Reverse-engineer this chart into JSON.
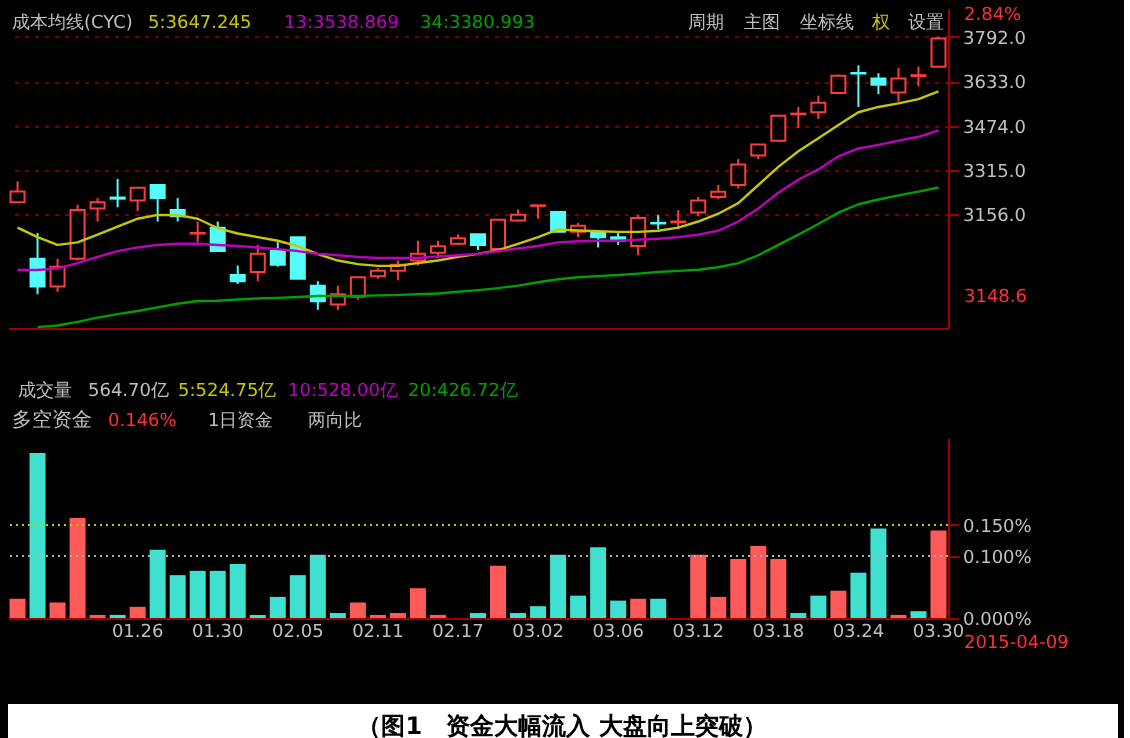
{
  "chart_data": [
    {
      "type": "candlestick",
      "title": "成本均线(CYC)",
      "legend": "top left",
      "tick_labels": "y",
      "grid": "y",
      "categories": [
        null,
        null,
        null,
        null,
        null,
        null,
        "01.26",
        null,
        null,
        null,
        "01.30",
        null,
        null,
        null,
        "02.05",
        null,
        null,
        null,
        "02.11",
        null,
        null,
        null,
        "02.17",
        null,
        null,
        null,
        "03.02",
        null,
        null,
        null,
        "03.06",
        null,
        null,
        null,
        "03.12",
        null,
        null,
        null,
        "03.18",
        null,
        null,
        null,
        "03.24",
        null,
        null,
        null,
        "03.30"
      ],
      "ohlc": [
        [
          3199,
          3274,
          3199,
          3238
        ],
        [
          2996,
          3089,
          2869,
          2897
        ],
        [
          2897,
          2996,
          2878,
          2968
        ],
        [
          2996,
          3190,
          2990,
          3171
        ],
        [
          3177,
          3214,
          3130,
          3199
        ],
        [
          3216,
          3283,
          3181,
          3212
        ],
        [
          3205,
          3251,
          3168,
          3251
        ],
        [
          3261,
          3261,
          3130,
          3214
        ],
        [
          3171,
          3214,
          3130,
          3149
        ],
        [
          3087,
          3130,
          3056,
          3089
        ],
        [
          3108,
          3130,
          3024,
          3024
        ],
        [
          2938,
          2972,
          2906,
          2916
        ],
        [
          2949,
          3046,
          2916,
          3014
        ],
        [
          3024,
          3056,
          2968,
          2975
        ],
        [
          3074,
          3074,
          2925,
          2925
        ],
        [
          2900,
          2916,
          2813,
          2844
        ],
        [
          2832,
          2900,
          2813,
          2869
        ],
        [
          2860,
          2930,
          2850,
          2930
        ],
        [
          2934,
          2962,
          2925,
          2953
        ],
        [
          2953,
          2990,
          2919,
          2975
        ],
        [
          2990,
          3061,
          2972,
          3014
        ],
        [
          3018,
          3061,
          2999,
          3041
        ],
        [
          3050,
          3084,
          3046,
          3070
        ],
        [
          3084,
          3084,
          3028,
          3046
        ],
        [
          3031,
          3136,
          3018,
          3136
        ],
        [
          3134,
          3173,
          3130,
          3154
        ],
        [
          3186,
          3190,
          3140,
          3188
        ],
        [
          3164,
          3164,
          3093,
          3093
        ],
        [
          3093,
          3125,
          3074,
          3115
        ],
        [
          3089,
          3089,
          3037,
          3074
        ],
        [
          3074,
          3093,
          3046,
          3061
        ],
        [
          3042,
          3153,
          3009,
          3143
        ],
        [
          3125,
          3153,
          3102,
          3123
        ],
        [
          3127,
          3171,
          3102,
          3130
        ],
        [
          3162,
          3218,
          3149,
          3205
        ],
        [
          3218,
          3261,
          3210,
          3237
        ],
        [
          3261,
          3354,
          3248,
          3335
        ],
        [
          3367,
          3406,
          3354,
          3406
        ],
        [
          3420,
          3509,
          3416,
          3509
        ],
        [
          3515,
          3541,
          3466,
          3517
        ],
        [
          3522,
          3582,
          3498,
          3556
        ],
        [
          3591,
          3657,
          3587,
          3653
        ],
        [
          3663,
          3690,
          3541,
          3661
        ],
        [
          3643,
          3662,
          3587,
          3621
        ],
        [
          3593,
          3681,
          3560,
          3643
        ],
        [
          3652,
          3686,
          3615,
          3655
        ],
        [
          3685,
          3793,
          3685,
          3787
        ]
      ],
      "colors": [
        "#ff3c3c",
        "#54fcfc",
        "#ff3c3c",
        "#ff3c3c",
        "#ff3c3c",
        "#54fcfc",
        "#ff3c3c",
        "#54fcfc",
        "#54fcfc",
        "#ff3c3c",
        "#54fcfc",
        "#54fcfc",
        "#ff3c3c",
        "#54fcfc",
        "#54fcfc",
        "#54fcfc",
        "#ff3c3c",
        "#ff3c3c",
        "#ff3c3c",
        "#ff3c3c",
        "#ff3c3c",
        "#ff3c3c",
        "#ff3c3c",
        "#54fcfc",
        "#ff3c3c",
        "#ff3c3c",
        "#ff3c3c",
        "#54fcfc",
        "#ff3c3c",
        "#54fcfc",
        "#54fcfc",
        "#ff3c3c",
        "#54fcfc",
        "#ff3c3c",
        "#ff3c3c",
        "#ff3c3c",
        "#ff3c3c",
        "#ff3c3c",
        "#ff3c3c",
        "#ff3c3c",
        "#ff3c3c",
        "#ff3c3c",
        "#54fcfc",
        "#54fcfc",
        "#ff3c3c",
        "#ff3c3c",
        "#ff3c3c"
      ],
      "series": [
        {
          "name": "5:3647.245",
          "type": "line",
          "color": "#c8c800",
          "values": [
            3108,
            3074,
            3046,
            3055,
            3083,
            3112,
            3140,
            3154,
            3153,
            3140,
            3106,
            3087,
            3074,
            3061,
            3042,
            3013,
            2990,
            2977,
            2971,
            2971,
            2981,
            2990,
            3003,
            3014,
            3027,
            3050,
            3074,
            3102,
            3098,
            3095,
            3093,
            3093,
            3097,
            3108,
            3130,
            3158,
            3196,
            3261,
            3326,
            3382,
            3429,
            3476,
            3522,
            3541,
            3554,
            3569,
            3597
          ]
        },
        {
          "name": "13:3538.869",
          "type": "line",
          "color": "#c000c0",
          "values": [
            2956,
            2956,
            2962,
            2981,
            3003,
            3024,
            3037,
            3046,
            3050,
            3050,
            3046,
            3042,
            3037,
            3031,
            3024,
            3014,
            3009,
            3003,
            2999,
            2999,
            2999,
            3005,
            3009,
            3014,
            3024,
            3033,
            3042,
            3055,
            3059,
            3061,
            3061,
            3065,
            3068,
            3074,
            3083,
            3097,
            3130,
            3177,
            3233,
            3280,
            3317,
            3364,
            3392,
            3405,
            3420,
            3434,
            3457
          ]
        },
        {
          "name": "34:3380.993",
          "type": "line",
          "color": "#00a000",
          "values": [
            null,
            2751,
            2757,
            2770,
            2785,
            2798,
            2809,
            2822,
            2835,
            2845,
            2846,
            2850,
            2854,
            2856,
            2859,
            2863,
            2863,
            2863,
            2865,
            2867,
            2869,
            2872,
            2878,
            2884,
            2891,
            2900,
            2912,
            2923,
            2930,
            2934,
            2938,
            2943,
            2949,
            2953,
            2957,
            2966,
            2981,
            3009,
            3046,
            3083,
            3121,
            3162,
            3192,
            3209,
            3224,
            3237,
            3252
          ]
        }
      ],
      "ylim": [
        2748,
        3896
      ],
      "yticks": [
        {
          "value": 3156,
          "label": "3156.0"
        },
        {
          "value": 3315,
          "label": "3315.0"
        },
        {
          "value": 3474,
          "label": "3474.0"
        },
        {
          "value": 3633,
          "label": "3633.0"
        },
        {
          "value": 3792,
          "label": "3792.0"
        }
      ],
      "annotations": [
        "周期",
        "主图",
        "坐标线",
        "权",
        "设置",
        "2.84%",
        "3148.6"
      ]
    },
    {
      "type": "bar",
      "title": "多空资金",
      "subtitle": "0.146%",
      "categories": [
        null,
        null,
        null,
        null,
        null,
        null,
        "01.26",
        null,
        null,
        null,
        "01.30",
        null,
        null,
        null,
        "02.05",
        null,
        null,
        null,
        "02.11",
        null,
        null,
        null,
        "02.17",
        null,
        null,
        null,
        "03.02",
        null,
        null,
        null,
        "03.06",
        null,
        null,
        null,
        "03.12",
        null,
        null,
        null,
        "03.18",
        null,
        null,
        null,
        "03.24",
        null,
        null,
        null,
        "03.30"
      ],
      "values": [
        0.031,
        0.266,
        0.025,
        0.161,
        0.005,
        0.005,
        0.018,
        0.11,
        0.069,
        0.076,
        0.076,
        0.087,
        0.005,
        0.034,
        0.069,
        0.102,
        0.008,
        0.025,
        0.005,
        0.008,
        0.048,
        0.005,
        0,
        0.008,
        0.084,
        0.008,
        0.019,
        0.102,
        0.036,
        0.114,
        0.028,
        0.031,
        0.031,
        0,
        0.102,
        0.034,
        0.095,
        0.116,
        0.095,
        0.008,
        0.036,
        0.044,
        0.073,
        0.144,
        0.005,
        0.011,
        0.141
      ],
      "colors": [
        "#ff5a5a",
        "#40e0d0",
        "#ff5a5a",
        "#ff5a5a",
        "#ff5a5a",
        "#40e0d0",
        "#ff5a5a",
        "#40e0d0",
        "#40e0d0",
        "#40e0d0",
        "#40e0d0",
        "#40e0d0",
        "#40e0d0",
        "#40e0d0",
        "#40e0d0",
        "#40e0d0",
        "#40e0d0",
        "#ff5a5a",
        "#ff5a5a",
        "#ff5a5a",
        "#ff5a5a",
        "#ff5a5a",
        "#ff5a5a",
        "#40e0d0",
        "#ff5a5a",
        "#40e0d0",
        "#40e0d0",
        "#40e0d0",
        "#40e0d0",
        "#40e0d0",
        "#40e0d0",
        "#ff5a5a",
        "#40e0d0",
        "#ff5a5a",
        "#ff5a5a",
        "#ff5a5a",
        "#ff5a5a",
        "#ff5a5a",
        "#ff5a5a",
        "#40e0d0",
        "#40e0d0",
        "#ff5a5a",
        "#40e0d0",
        "#40e0d0",
        "#ff5a5a",
        "#40e0d0",
        "#ff5a5a"
      ],
      "ylim": [
        0,
        0.29
      ],
      "yticks": [
        {
          "value": 0,
          "label": "0.000%"
        },
        {
          "value": 0.1,
          "label": "0.100%"
        },
        {
          "value": 0.15,
          "label": "0.150%"
        }
      ],
      "ref_lines": [
        {
          "axis": "y",
          "value": 0.1,
          "color": "#b0b0b0",
          "line_style": "dotted"
        },
        {
          "axis": "y",
          "value": 0.15,
          "color": "#c8c800",
          "line_style": "dotted"
        }
      ],
      "annotations": [
        "成交量",
        "564.70亿",
        "5:524.75亿",
        "10:528.00亿",
        "20:426.72亿",
        "1日资金",
        "两向比",
        "2015-04-09",
        "（图1　资金大幅流入 大盘向上突破）"
      ]
    }
  ]
}
